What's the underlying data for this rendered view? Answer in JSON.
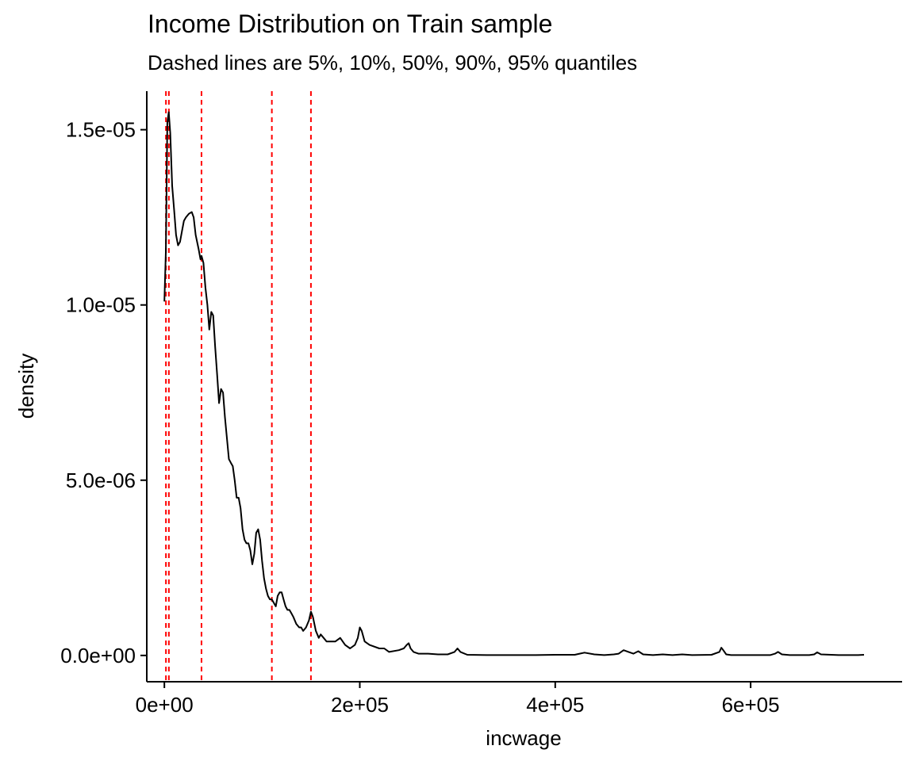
{
  "chart_data": {
    "type": "line",
    "title": "Income Distribution on Train sample",
    "subtitle": "Dashed lines are 5%, 10%, 50%, 90%, 95% quantiles",
    "xlabel": "incwage",
    "ylabel": "density",
    "xlim": [
      -18000,
      755000
    ],
    "ylim": [
      -7.5e-07,
      1.61e-05
    ],
    "x_ticks": [
      0,
      200000,
      400000,
      600000
    ],
    "x_tick_labels": [
      "0e+00",
      "2e+05",
      "4e+05",
      "6e+05"
    ],
    "y_ticks": [
      0,
      5e-06,
      1e-05,
      1.5e-05
    ],
    "y_tick_labels": [
      "0.0e+00",
      "5.0e-06",
      "1.0e-05",
      "1.5e-05"
    ],
    "grid": false,
    "legend": "none",
    "colors": {
      "density_line": "#000000",
      "quantile_lines": "#ff0000"
    },
    "quantile_lines": [
      1600,
      4600,
      38000,
      110000,
      150000
    ],
    "series": [
      {
        "x": [
          0,
          1500,
          3000,
          4500,
          6000,
          8000,
          10000,
          12000,
          14000,
          16000,
          18000,
          20000,
          22000,
          25000,
          28000,
          30000,
          32000,
          35000,
          37000,
          38000,
          40000,
          42000,
          44000,
          46000,
          48000,
          50000,
          52000,
          54000,
          56000,
          58000,
          60000,
          62000,
          64000,
          66000,
          68000,
          70000,
          72000,
          74000,
          76000,
          78000,
          80000,
          82000,
          84000,
          86000,
          88000,
          90000,
          92000,
          94000,
          96000,
          98000,
          100000,
          102000,
          104000,
          106000,
          108000,
          110000,
          112000,
          114000,
          116000,
          118000,
          120000,
          122000,
          124000,
          126000,
          128000,
          130000,
          132000,
          135000,
          138000,
          140000,
          142000,
          145000,
          148000,
          150000,
          152000,
          155000,
          158000,
          160000,
          163000,
          166000,
          170000,
          175000,
          180000,
          185000,
          190000,
          195000,
          198000,
          200000,
          202000,
          205000,
          210000,
          220000,
          225000,
          230000,
          240000,
          245000,
          248000,
          250000,
          252000,
          255000,
          260000,
          270000,
          280000,
          290000,
          297000,
          300000,
          303000,
          310000,
          330000,
          350000,
          380000,
          400000,
          420000,
          425000,
          430000,
          440000,
          450000,
          460000,
          465000,
          470000,
          475000,
          480000,
          485000,
          490000,
          500000,
          510000,
          520000,
          530000,
          540000,
          560000,
          568000,
          570000,
          572000,
          575000,
          580000,
          600000,
          620000,
          625000,
          628000,
          632000,
          640000,
          660000,
          665000,
          668000,
          672000,
          690000,
          710000,
          716000
        ],
        "y": [
          1.01e-05,
          1.15e-05,
          1.52e-05,
          1.55e-05,
          1.49e-05,
          1.34e-05,
          1.27e-05,
          1.2e-05,
          1.17e-05,
          1.18e-05,
          1.21e-05,
          1.24e-05,
          1.25e-05,
          1.26e-05,
          1.265e-05,
          1.25e-05,
          1.2e-05,
          1.16e-05,
          1.13e-05,
          1.14e-05,
          1.12e-05,
          1.05e-05,
          1e-05,
          9.3e-06,
          9.8e-06,
          9.7e-06,
          8.8e-06,
          8e-06,
          7.2e-06,
          7.6e-06,
          7.5e-06,
          6.8e-06,
          6.2e-06,
          5.6e-06,
          5.5e-06,
          5.4e-06,
          5e-06,
          4.5e-06,
          4.5e-06,
          4.2e-06,
          3.6e-06,
          3.3e-06,
          3.2e-06,
          3.2e-06,
          3e-06,
          2.6e-06,
          2.9e-06,
          3.5e-06,
          3.6e-06,
          3.3e-06,
          2.7e-06,
          2.2e-06,
          1.9e-06,
          1.7e-06,
          1.6e-06,
          1.6e-06,
          1.5e-06,
          1.4e-06,
          1.7e-06,
          1.8e-06,
          1.8e-06,
          1.6e-06,
          1.4e-06,
          1.3e-06,
          1.3e-06,
          1.2e-06,
          1.1e-06,
          9e-07,
          8e-07,
          8e-07,
          7e-07,
          8e-07,
          1e-06,
          1.25e-06,
          1.1e-06,
          7e-07,
          5e-07,
          6e-07,
          5e-07,
          4e-07,
          4e-07,
          4e-07,
          5e-07,
          3e-07,
          2e-07,
          3e-07,
          5e-07,
          8e-07,
          7e-07,
          4e-07,
          3e-07,
          2e-07,
          2e-07,
          1e-07,
          1.5e-07,
          2e-07,
          3e-07,
          3.5e-07,
          2e-07,
          1e-07,
          5e-08,
          5e-08,
          3e-08,
          3e-08,
          1e-07,
          2e-07,
          1e-07,
          2e-08,
          1e-08,
          1e-08,
          1e-08,
          2e-08,
          2e-08,
          5e-08,
          8e-08,
          3e-08,
          1e-08,
          3e-08,
          5e-08,
          1.5e-07,
          1e-07,
          5e-08,
          1.2e-07,
          3e-08,
          1e-08,
          3e-08,
          1e-08,
          3e-08,
          1e-08,
          2e-08,
          1e-07,
          2.2e-07,
          1.5e-07,
          3e-08,
          1e-08,
          1e-08,
          1e-08,
          5e-08,
          1e-07,
          3e-08,
          1e-08,
          1e-08,
          3e-08,
          9e-08,
          3e-08,
          1e-08,
          1e-08,
          2e-08
        ]
      }
    ]
  }
}
